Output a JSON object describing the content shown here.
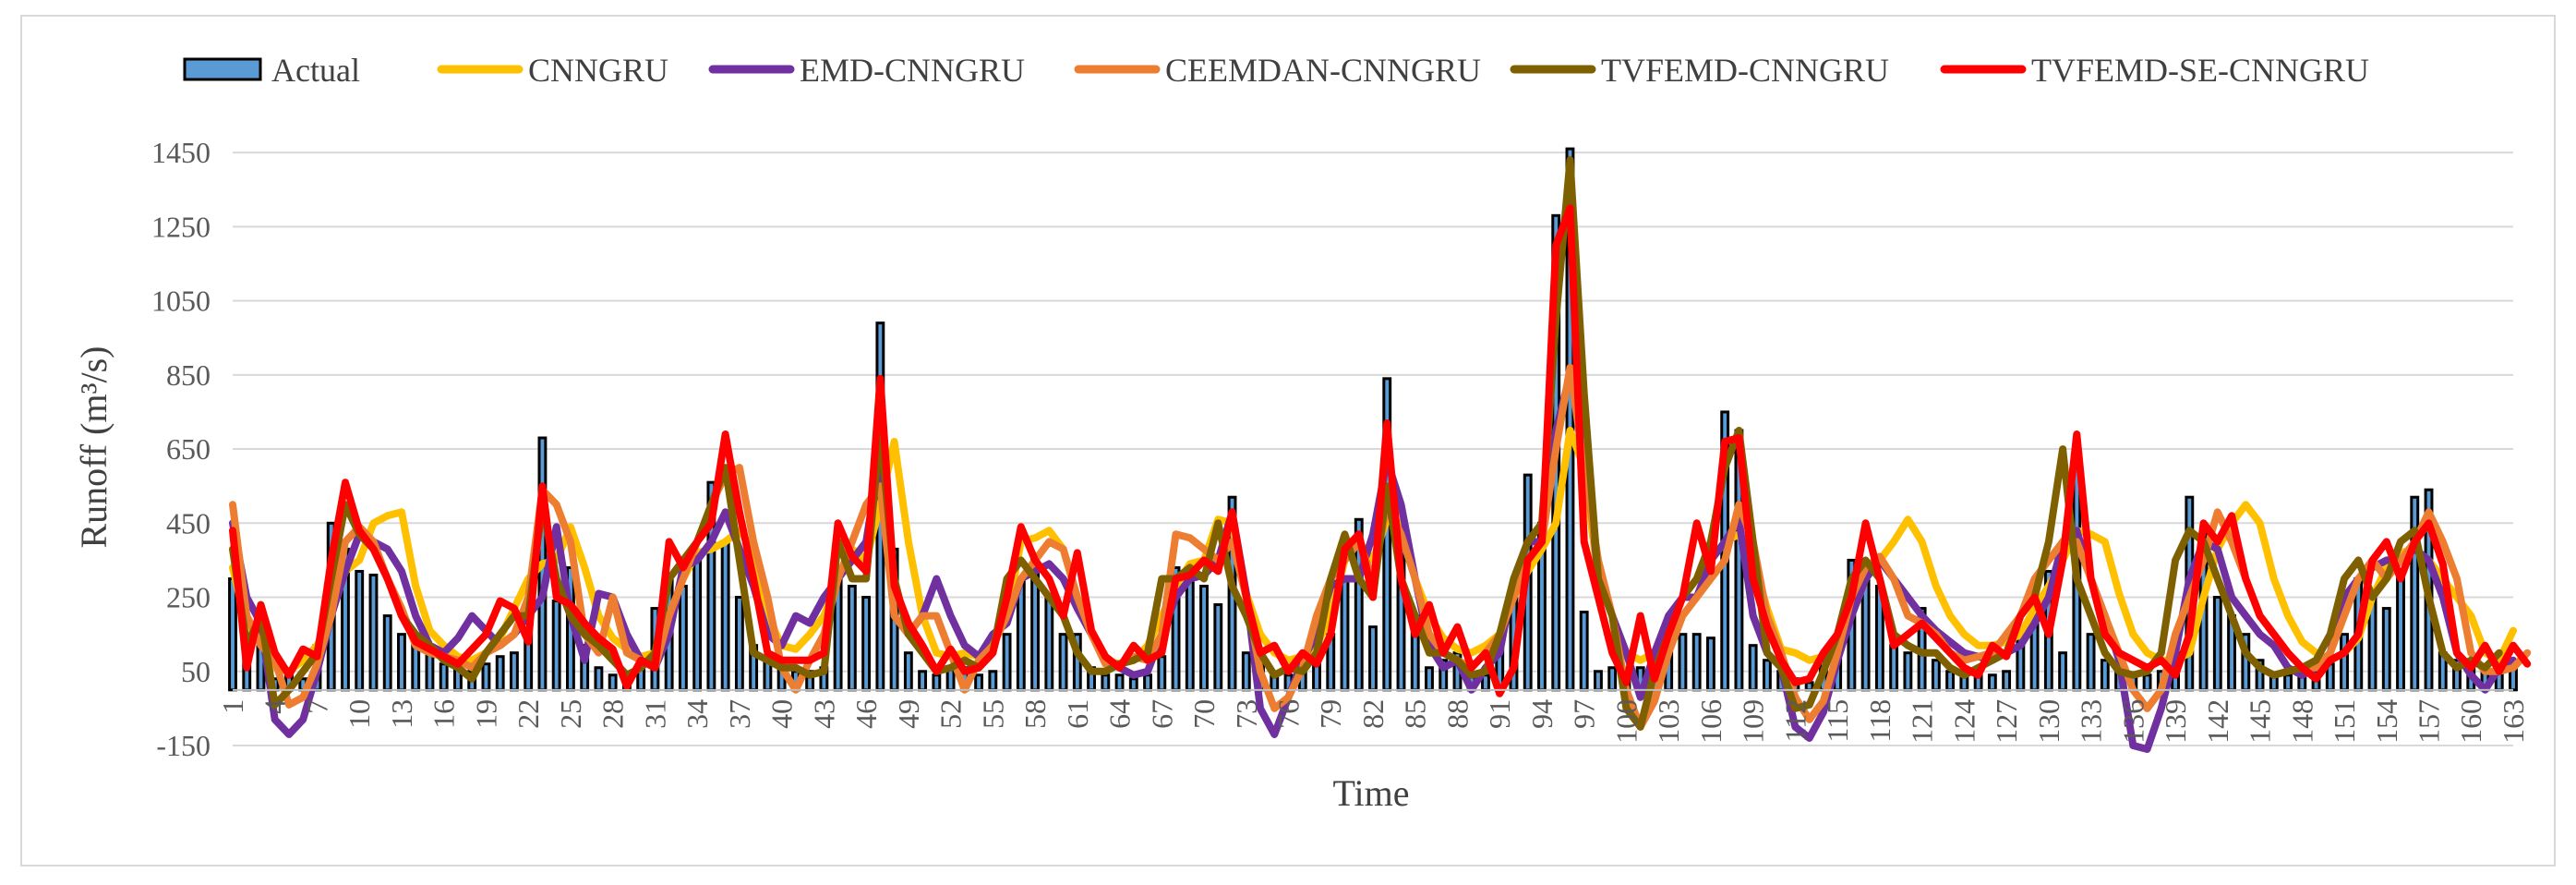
{
  "chart_data": {
    "type": "bar+line",
    "xlabel": "Time",
    "ylabel": "Runoff (m³/s)",
    "ylim": [
      -150,
      1550
    ],
    "yticks": [
      -150,
      50,
      250,
      450,
      650,
      850,
      1050,
      1250,
      1450
    ],
    "x_start": 1,
    "x_end": 163,
    "x_tick_step": 3,
    "grid": "horizontal",
    "legend_position": "top",
    "series": [
      {
        "name": "Actual",
        "type": "bar",
        "color": "#5b9bd5",
        "values": [
          300,
          110,
          170,
          30,
          40,
          30,
          120,
          450,
          380,
          320,
          310,
          200,
          150,
          120,
          100,
          70,
          60,
          50,
          70,
          90,
          100,
          150,
          680,
          240,
          330,
          120,
          60,
          40,
          30,
          60,
          220,
          300,
          280,
          350,
          560,
          400,
          250,
          120,
          80,
          60,
          50,
          50,
          60,
          300,
          280,
          250,
          990,
          380,
          100,
          50,
          40,
          60,
          60,
          40,
          50,
          150,
          300,
          350,
          250,
          150,
          150,
          60,
          40,
          40,
          30,
          40,
          90,
          330,
          300,
          280,
          230,
          520,
          100,
          90,
          40,
          40,
          60,
          100,
          150,
          300,
          460,
          170,
          840,
          380,
          200,
          60,
          80,
          100,
          40,
          40,
          150,
          250,
          580,
          450,
          1280,
          1460,
          210,
          50,
          60,
          40,
          60,
          60,
          100,
          150,
          150,
          140,
          750,
          700,
          120,
          80,
          50,
          30,
          20,
          80,
          120,
          350,
          300,
          280,
          120,
          100,
          220,
          80,
          50,
          50,
          40,
          40,
          50,
          150,
          180,
          320,
          100,
          600,
          150,
          80,
          50,
          40,
          40,
          50,
          100,
          520,
          420,
          250,
          200,
          150,
          80,
          40,
          40,
          40,
          50,
          70,
          150,
          300,
          250,
          220,
          300,
          520,
          540,
          100,
          80,
          60,
          50,
          80,
          60
        ]
      },
      {
        "name": "CNNGRU",
        "type": "line",
        "color": "#ffc000",
        "values": [
          330,
          170,
          130,
          60,
          50,
          80,
          120,
          200,
          320,
          350,
          450,
          470,
          480,
          280,
          160,
          120,
          90,
          80,
          100,
          140,
          220,
          300,
          340,
          350,
          440,
          330,
          200,
          140,
          110,
          90,
          100,
          200,
          300,
          370,
          380,
          400,
          430,
          380,
          200,
          120,
          110,
          150,
          200,
          300,
          380,
          350,
          500,
          670,
          400,
          200,
          100,
          90,
          100,
          90,
          120,
          200,
          400,
          410,
          430,
          380,
          250,
          150,
          80,
          70,
          80,
          120,
          200,
          280,
          340,
          350,
          460,
          450,
          260,
          150,
          100,
          80,
          90,
          120,
          200,
          350,
          400,
          350,
          460,
          450,
          300,
          200,
          140,
          110,
          100,
          120,
          150,
          250,
          320,
          380,
          450,
          700,
          600,
          300,
          200,
          100,
          80,
          100,
          160,
          250,
          300,
          350,
          400,
          420,
          350,
          220,
          110,
          100,
          80,
          90,
          110,
          200,
          300,
          350,
          400,
          460,
          400,
          280,
          200,
          150,
          120,
          120,
          130,
          150,
          220,
          280,
          350,
          430,
          420,
          400,
          260,
          150,
          100,
          80,
          80,
          100,
          250,
          380,
          450,
          500,
          450,
          300,
          200,
          130,
          100,
          80,
          100,
          140,
          250,
          330,
          370,
          380,
          350,
          300,
          250,
          200,
          100,
          80,
          160
        ]
      },
      {
        "name": "EMD-CNNGRU",
        "type": "line",
        "color": "#7030a0",
        "values": [
          450,
          250,
          180,
          -80,
          -120,
          -80,
          50,
          200,
          320,
          420,
          400,
          380,
          320,
          200,
          120,
          100,
          140,
          200,
          160,
          120,
          150,
          200,
          250,
          440,
          200,
          80,
          260,
          250,
          150,
          80,
          60,
          150,
          330,
          350,
          400,
          480,
          380,
          280,
          150,
          120,
          200,
          180,
          250,
          300,
          350,
          400,
          640,
          200,
          150,
          200,
          300,
          200,
          120,
          90,
          150,
          180,
          300,
          320,
          340,
          300,
          220,
          150,
          80,
          60,
          40,
          50,
          150,
          250,
          300,
          310,
          350,
          480,
          260,
          -50,
          -120,
          -20,
          80,
          150,
          280,
          300,
          300,
          420,
          620,
          500,
          300,
          120,
          60,
          80,
          0,
          60,
          100,
          300,
          400,
          400,
          700,
          850,
          700,
          300,
          200,
          100,
          -20,
          100,
          200,
          250,
          250,
          350,
          400,
          460,
          200,
          100,
          60,
          -100,
          -130,
          -60,
          80,
          200,
          300,
          350,
          300,
          250,
          200,
          160,
          130,
          100,
          90,
          80,
          100,
          120,
          180,
          250,
          400,
          430,
          300,
          200,
          80,
          -150,
          -160,
          -50,
          100,
          300,
          400,
          380,
          250,
          200,
          150,
          120,
          60,
          40,
          60,
          100,
          250,
          300,
          330,
          350,
          350,
          380,
          350,
          250,
          100,
          40,
          0,
          60,
          80
        ]
      },
      {
        "name": "CEEMDAN-CNNGRU",
        "type": "line",
        "color": "#ed7d31",
        "values": [
          500,
          200,
          120,
          80,
          -40,
          -20,
          70,
          200,
          400,
          440,
          400,
          300,
          220,
          120,
          100,
          90,
          80,
          60,
          100,
          120,
          150,
          250,
          540,
          500,
          400,
          150,
          100,
          250,
          100,
          80,
          60,
          200,
          300,
          400,
          500,
          580,
          600,
          400,
          250,
          60,
          0,
          80,
          150,
          300,
          400,
          500,
          550,
          200,
          150,
          200,
          200,
          100,
          0,
          80,
          120,
          200,
          300,
          350,
          400,
          380,
          250,
          150,
          70,
          70,
          90,
          80,
          150,
          420,
          410,
          380,
          350,
          400,
          250,
          50,
          -50,
          -20,
          60,
          200,
          300,
          350,
          400,
          300,
          500,
          420,
          300,
          150,
          100,
          80,
          60,
          100,
          150,
          250,
          350,
          400,
          650,
          870,
          600,
          350,
          200,
          0,
          -100,
          -30,
          100,
          200,
          250,
          300,
          350,
          500,
          400,
          200,
          100,
          -20,
          -80,
          -30,
          100,
          250,
          330,
          360,
          300,
          200,
          180,
          150,
          100,
          80,
          90,
          100,
          150,
          200,
          300,
          350,
          400,
          400,
          300,
          200,
          100,
          0,
          -50,
          0,
          150,
          250,
          350,
          480,
          400,
          300,
          200,
          150,
          100,
          60,
          60,
          100,
          200,
          300,
          350,
          300,
          350,
          400,
          480,
          400,
          300,
          100,
          50,
          50,
          60,
          100
        ]
      },
      {
        "name": "TVFEMD-CNNGRU",
        "type": "line",
        "color": "#7f6000",
        "values": [
          380,
          120,
          200,
          -40,
          0,
          50,
          100,
          300,
          500,
          420,
          380,
          300,
          200,
          150,
          120,
          80,
          60,
          30,
          100,
          150,
          200,
          200,
          500,
          300,
          200,
          150,
          120,
          80,
          40,
          60,
          100,
          300,
          350,
          400,
          500,
          600,
          350,
          100,
          80,
          60,
          60,
          40,
          50,
          400,
          300,
          300,
          700,
          300,
          150,
          100,
          50,
          60,
          80,
          60,
          100,
          300,
          350,
          300,
          250,
          200,
          100,
          50,
          50,
          70,
          80,
          100,
          300,
          300,
          330,
          300,
          450,
          280,
          200,
          100,
          40,
          60,
          50,
          100,
          300,
          420,
          300,
          250,
          550,
          300,
          200,
          100,
          100,
          80,
          40,
          50,
          150,
          300,
          400,
          450,
          1000,
          1430,
          800,
          300,
          200,
          -50,
          -100,
          50,
          150,
          250,
          300,
          400,
          600,
          700,
          400,
          100,
          60,
          -50,
          -40,
          50,
          150,
          300,
          350,
          300,
          150,
          120,
          100,
          100,
          60,
          40,
          60,
          80,
          100,
          200,
          250,
          400,
          650,
          300,
          200,
          100,
          50,
          40,
          50,
          100,
          350,
          430,
          400,
          300,
          200,
          100,
          60,
          40,
          50,
          60,
          80,
          150,
          300,
          350,
          250,
          300,
          400,
          430,
          250,
          100,
          60,
          80,
          60,
          100
        ]
      },
      {
        "name": "TVFEMD-SE-CNNGRU",
        "type": "line",
        "color": "#ff0000",
        "values": [
          430,
          60,
          230,
          100,
          40,
          110,
          90,
          350,
          560,
          430,
          380,
          300,
          200,
          130,
          110,
          90,
          70,
          110,
          150,
          240,
          220,
          130,
          550,
          250,
          230,
          180,
          140,
          110,
          10,
          80,
          60,
          400,
          330,
          400,
          450,
          690,
          480,
          300,
          100,
          80,
          80,
          80,
          100,
          450,
          360,
          320,
          840,
          280,
          180,
          120,
          50,
          110,
          50,
          60,
          100,
          250,
          440,
          350,
          300,
          200,
          370,
          160,
          90,
          60,
          120,
          80,
          100,
          300,
          310,
          350,
          320,
          480,
          250,
          100,
          120,
          50,
          100,
          70,
          150,
          380,
          420,
          250,
          720,
          300,
          150,
          230,
          100,
          170,
          60,
          100,
          -10,
          60,
          350,
          400,
          1200,
          1300,
          400,
          250,
          100,
          20,
          200,
          30,
          150,
          250,
          450,
          320,
          670,
          680,
          300,
          170,
          80,
          20,
          30,
          100,
          150,
          250,
          450,
          300,
          120,
          150,
          180,
          140,
          100,
          60,
          40,
          120,
          90,
          200,
          250,
          150,
          350,
          690,
          300,
          150,
          100,
          80,
          60,
          80,
          40,
          150,
          450,
          400,
          470,
          300,
          200,
          150,
          100,
          60,
          30,
          80,
          100,
          150,
          350,
          400,
          300,
          400,
          450,
          340,
          100,
          60,
          120,
          50,
          120,
          70
        ]
      }
    ]
  }
}
